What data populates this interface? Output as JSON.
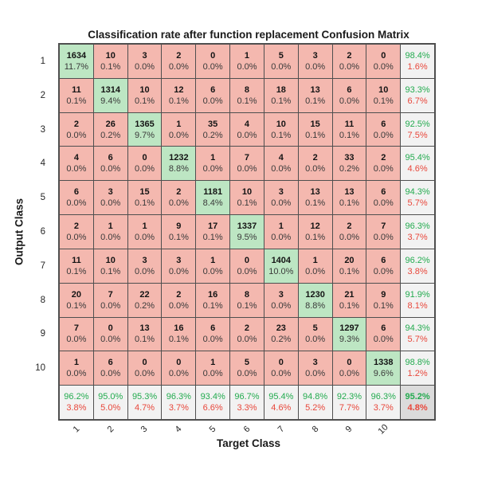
{
  "colors": {
    "diag": "#BDE6C3",
    "off": "#F4B8AF",
    "sum": "#F2F2F2",
    "corner": "#DBDBDB",
    "line": "#4F4F4F",
    "pos": "#23AB4F",
    "neg": "#E8473B",
    "count": "#141414",
    "pct": "#3A3A3A"
  },
  "chart_data": {
    "type": "heatmap",
    "subtype": "confusion-matrix",
    "title": "Classification rate after function replacement Confusion Matrix",
    "xlabel": "Target Class",
    "ylabel": "Output Class",
    "classes": [
      "1",
      "2",
      "3",
      "4",
      "5",
      "6",
      "7",
      "8",
      "9",
      "10"
    ],
    "counts": [
      [
        1634,
        10,
        3,
        2,
        0,
        1,
        5,
        3,
        2,
        0
      ],
      [
        11,
        1314,
        10,
        12,
        6,
        8,
        18,
        13,
        6,
        10
      ],
      [
        2,
        26,
        1365,
        1,
        35,
        4,
        10,
        15,
        11,
        6
      ],
      [
        4,
        6,
        0,
        1232,
        1,
        7,
        4,
        2,
        33,
        2
      ],
      [
        6,
        3,
        15,
        2,
        1181,
        10,
        3,
        13,
        13,
        6
      ],
      [
        2,
        1,
        1,
        9,
        17,
        1337,
        1,
        12,
        2,
        7
      ],
      [
        11,
        10,
        3,
        3,
        1,
        0,
        1404,
        1,
        20,
        6
      ],
      [
        20,
        7,
        22,
        2,
        16,
        8,
        3,
        1230,
        21,
        9
      ],
      [
        7,
        0,
        13,
        16,
        6,
        2,
        23,
        5,
        1297,
        6
      ],
      [
        1,
        6,
        0,
        0,
        1,
        5,
        0,
        3,
        0,
        1338
      ]
    ],
    "percents": [
      [
        "11.7%",
        "0.1%",
        "0.0%",
        "0.0%",
        "0.0%",
        "0.0%",
        "0.0%",
        "0.0%",
        "0.0%",
        "0.0%"
      ],
      [
        "0.1%",
        "9.4%",
        "0.1%",
        "0.1%",
        "0.0%",
        "0.1%",
        "0.1%",
        "0.1%",
        "0.0%",
        "0.1%"
      ],
      [
        "0.0%",
        "0.2%",
        "9.7%",
        "0.0%",
        "0.2%",
        "0.0%",
        "0.1%",
        "0.1%",
        "0.1%",
        "0.0%"
      ],
      [
        "0.0%",
        "0.0%",
        "0.0%",
        "8.8%",
        "0.0%",
        "0.0%",
        "0.0%",
        "0.0%",
        "0.2%",
        "0.0%"
      ],
      [
        "0.0%",
        "0.0%",
        "0.1%",
        "0.0%",
        "8.4%",
        "0.1%",
        "0.0%",
        "0.1%",
        "0.1%",
        "0.0%"
      ],
      [
        "0.0%",
        "0.0%",
        "0.0%",
        "0.1%",
        "0.1%",
        "9.5%",
        "0.0%",
        "0.1%",
        "0.0%",
        "0.0%"
      ],
      [
        "0.1%",
        "0.1%",
        "0.0%",
        "0.0%",
        "0.0%",
        "0.0%",
        "10.0%",
        "0.0%",
        "0.1%",
        "0.0%"
      ],
      [
        "0.1%",
        "0.0%",
        "0.2%",
        "0.0%",
        "0.1%",
        "0.1%",
        "0.0%",
        "8.8%",
        "0.1%",
        "0.1%"
      ],
      [
        "0.0%",
        "0.0%",
        "0.1%",
        "0.1%",
        "0.0%",
        "0.0%",
        "0.2%",
        "0.0%",
        "9.3%",
        "0.0%"
      ],
      [
        "0.0%",
        "0.0%",
        "0.0%",
        "0.0%",
        "0.0%",
        "0.0%",
        "0.0%",
        "0.0%",
        "0.0%",
        "9.6%"
      ]
    ],
    "row_summaries": [
      [
        "98.4%",
        "1.6%"
      ],
      [
        "93.3%",
        "6.7%"
      ],
      [
        "92.5%",
        "7.5%"
      ],
      [
        "95.4%",
        "4.6%"
      ],
      [
        "94.3%",
        "5.7%"
      ],
      [
        "96.3%",
        "3.7%"
      ],
      [
        "96.2%",
        "3.8%"
      ],
      [
        "91.9%",
        "8.1%"
      ],
      [
        "94.3%",
        "5.7%"
      ],
      [
        "98.8%",
        "1.2%"
      ]
    ],
    "col_summaries": [
      [
        "96.2%",
        "3.8%"
      ],
      [
        "95.0%",
        "5.0%"
      ],
      [
        "95.3%",
        "4.7%"
      ],
      [
        "96.3%",
        "3.7%"
      ],
      [
        "93.4%",
        "6.6%"
      ],
      [
        "96.7%",
        "3.3%"
      ],
      [
        "95.4%",
        "4.6%"
      ],
      [
        "94.8%",
        "5.2%"
      ],
      [
        "92.3%",
        "7.7%"
      ],
      [
        "96.3%",
        "3.7%"
      ]
    ],
    "overall": [
      "95.2%",
      "4.8%"
    ]
  }
}
